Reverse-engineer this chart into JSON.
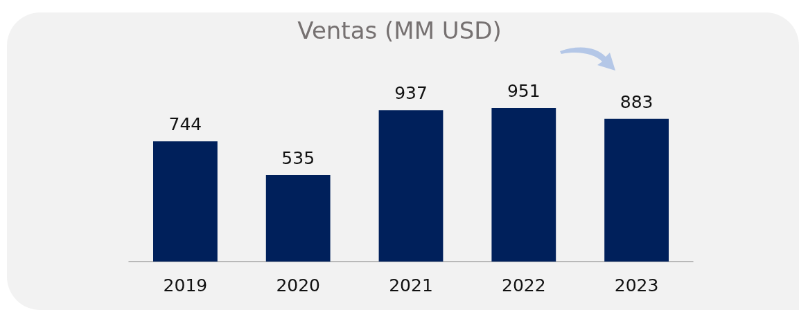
{
  "chart_data": {
    "type": "bar",
    "title": "Ventas (MM USD)",
    "categories": [
      "2019",
      "2020",
      "2021",
      "2022",
      "2023"
    ],
    "values": [
      744,
      535,
      937,
      951,
      883
    ],
    "color": "#00205b",
    "data_labels": true
  }
}
